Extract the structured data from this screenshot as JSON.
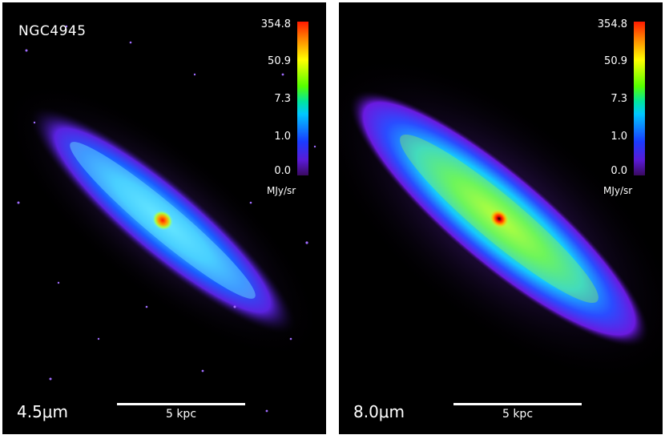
{
  "panels": [
    {
      "title": "NGC4945",
      "band": "4.5μm",
      "scale_label": "5 kpc",
      "colorbar": {
        "ticks": [
          "354.8",
          "50.9",
          "7.3",
          "1.0",
          "0.0"
        ],
        "unit": "MJy/sr"
      }
    },
    {
      "title": "",
      "band": "8.0μm",
      "scale_label": "5 kpc",
      "colorbar": {
        "ticks": [
          "354.8",
          "50.9",
          "7.3",
          "1.0",
          "0.0"
        ],
        "unit": "MJy/sr"
      }
    }
  ],
  "colors": {
    "background": "#000000",
    "text": "#ffffff"
  }
}
